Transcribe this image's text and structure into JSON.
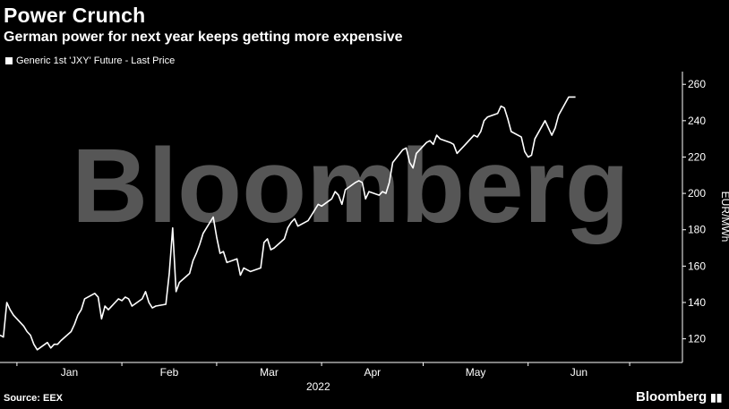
{
  "header": {
    "title": "Power Crunch",
    "subtitle": "German power for next year keeps getting more expensive"
  },
  "footer": {
    "source": "Source: EEX",
    "brand": "Bloomberg",
    "brand_icon": "bar-chart-icon"
  },
  "watermark": "Bloomberg",
  "colors": {
    "background": "#000000",
    "line": "#ffffff",
    "axis": "#ffffff",
    "watermark": "#7a7a7a"
  },
  "chart_data": {
    "type": "line",
    "title": "Power Crunch",
    "subtitle": "German power for next year keeps getting more expensive",
    "ylabel": "EUR/MWh",
    "xlabel": "2022",
    "ylim": [
      107,
      267
    ],
    "yticks": [
      120,
      140,
      160,
      180,
      200,
      220,
      240,
      260
    ],
    "xticks": [
      "Jan",
      "Feb",
      "Mar",
      "Apr",
      "May",
      "Jun"
    ],
    "grid": false,
    "legend": "top-left",
    "series": [
      {
        "name": "Generic 1st 'JXY' Future - Last Price",
        "color": "#ffffff",
        "x": [
          "2021-12-27",
          "2021-12-28",
          "2021-12-29",
          "2021-12-30",
          "2021-12-31",
          "2022-01-03",
          "2022-01-04",
          "2022-01-05",
          "2022-01-06",
          "2022-01-07",
          "2022-01-10",
          "2022-01-11",
          "2022-01-12",
          "2022-01-13",
          "2022-01-14",
          "2022-01-17",
          "2022-01-18",
          "2022-01-19",
          "2022-01-20",
          "2022-01-21",
          "2022-01-24",
          "2022-01-25",
          "2022-01-26",
          "2022-01-27",
          "2022-01-28",
          "2022-01-31",
          "2022-02-01",
          "2022-02-02",
          "2022-02-03",
          "2022-02-04",
          "2022-02-07",
          "2022-02-08",
          "2022-02-09",
          "2022-02-10",
          "2022-02-11",
          "2022-02-14",
          "2022-02-15",
          "2022-02-16",
          "2022-02-17",
          "2022-02-18",
          "2022-02-21",
          "2022-02-22",
          "2022-02-23",
          "2022-02-24",
          "2022-02-25",
          "2022-02-28",
          "2022-03-01",
          "2022-03-02",
          "2022-03-03",
          "2022-03-04",
          "2022-03-07",
          "2022-03-08",
          "2022-03-09",
          "2022-03-10",
          "2022-03-11",
          "2022-03-14",
          "2022-03-15",
          "2022-03-16",
          "2022-03-17",
          "2022-03-18",
          "2022-03-21",
          "2022-03-22",
          "2022-03-23",
          "2022-03-24",
          "2022-03-25",
          "2022-03-28",
          "2022-03-29",
          "2022-03-30",
          "2022-03-31",
          "2022-04-01",
          "2022-04-04",
          "2022-04-05",
          "2022-04-06",
          "2022-04-07",
          "2022-04-08",
          "2022-04-11",
          "2022-04-12",
          "2022-04-13",
          "2022-04-14",
          "2022-04-15",
          "2022-04-18",
          "2022-04-19",
          "2022-04-20",
          "2022-04-21",
          "2022-04-22",
          "2022-04-25",
          "2022-04-26",
          "2022-04-27",
          "2022-04-28",
          "2022-04-29",
          "2022-05-02",
          "2022-05-03",
          "2022-05-04",
          "2022-05-05",
          "2022-05-06",
          "2022-05-09",
          "2022-05-10",
          "2022-05-11",
          "2022-05-12",
          "2022-05-13",
          "2022-05-16",
          "2022-05-17",
          "2022-05-18",
          "2022-05-19",
          "2022-05-20",
          "2022-05-23",
          "2022-05-24",
          "2022-05-25",
          "2022-05-26",
          "2022-05-27",
          "2022-05-30",
          "2022-05-31",
          "2022-06-01",
          "2022-06-02",
          "2022-06-03",
          "2022-06-06",
          "2022-06-07",
          "2022-06-08",
          "2022-06-09",
          "2022-06-10",
          "2022-06-13",
          "2022-06-14",
          "2022-06-15"
        ],
        "values": [
          122,
          121,
          140,
          136,
          133,
          127,
          124,
          122,
          117,
          114,
          118,
          115,
          117,
          117,
          119,
          124,
          128,
          133,
          136,
          142,
          145,
          143,
          131,
          138,
          136,
          142,
          141,
          143,
          142,
          138,
          142,
          146,
          140,
          137,
          138,
          139,
          156,
          181,
          146,
          151,
          156,
          163,
          167,
          172,
          178,
          187,
          176,
          167,
          168,
          162,
          164,
          155,
          159,
          158,
          157,
          159,
          173,
          175,
          169,
          170,
          175,
          181,
          184,
          186,
          182,
          185,
          188,
          191,
          194,
          193,
          197,
          201,
          199,
          194,
          202,
          206,
          207,
          206,
          197,
          201,
          199,
          201,
          200,
          206,
          217,
          224,
          225,
          217,
          214,
          222,
          228,
          229,
          227,
          232,
          230,
          228,
          227,
          222,
          224,
          226,
          232,
          231,
          234,
          240,
          242,
          244,
          248,
          247,
          241,
          234,
          231,
          223,
          220,
          221,
          230,
          240,
          236,
          232,
          236,
          243,
          253,
          253,
          253
        ]
      }
    ]
  }
}
